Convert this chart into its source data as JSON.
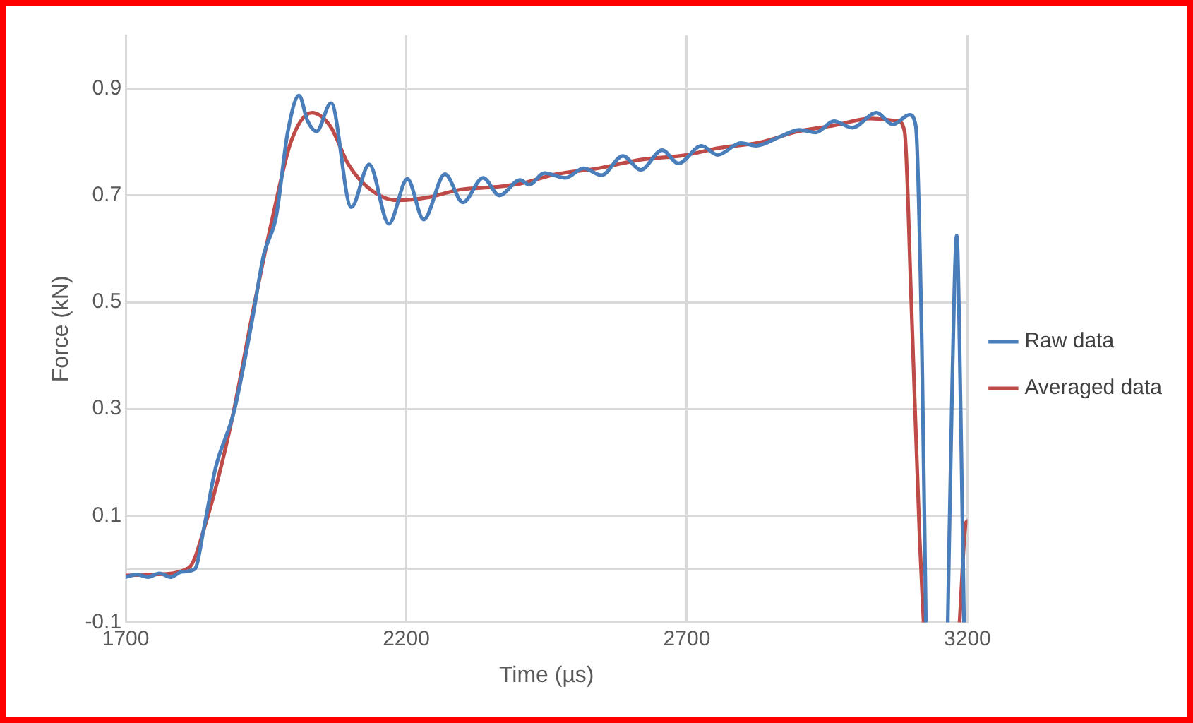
{
  "chart_data": {
    "type": "line",
    "xlabel": "Time (µs)",
    "ylabel": "Force (kN)",
    "xlim": [
      1700,
      3200
    ],
    "xticks": [
      1700,
      2200,
      2700,
      3200
    ],
    "ylim": [
      -0.1,
      1.0
    ],
    "yticks": [
      -0.1,
      {
        "value": 0,
        "label": null
      },
      0.1,
      0.3,
      0.5,
      0.7,
      0.9
    ],
    "grid": true,
    "legend": "right",
    "marker": "none",
    "line_style": "solid",
    "series": [
      {
        "name": "Raw data",
        "color": "#4a7ebb",
        "x": [
          1700,
          1720,
          1740,
          1760,
          1780,
          1800,
          1823,
          1840,
          1860,
          1893,
          1925,
          1946,
          1968,
          1989,
          2009,
          2024,
          2040,
          2066,
          2102,
          2134,
          2169,
          2202,
          2231,
          2269,
          2301,
          2337,
          2366,
          2403,
          2419,
          2446,
          2484,
          2516,
          2548,
          2586,
          2618,
          2656,
          2685,
          2726,
          2755,
          2796,
          2823,
          2866,
          2900,
          2930,
          2962,
          2995,
          3038,
          3067,
          3097,
          3108,
          3119,
          3126,
          3145,
          3165,
          3173,
          3181,
          3188,
          3194
        ],
        "values": [
          -0.015,
          -0.01,
          -0.015,
          -0.008,
          -0.015,
          -0.005,
          0.0,
          0.08,
          0.189,
          0.295,
          0.464,
          0.589,
          0.66,
          0.82,
          0.887,
          0.84,
          0.82,
          0.873,
          0.678,
          0.758,
          0.647,
          0.731,
          0.655,
          0.74,
          0.687,
          0.733,
          0.7,
          0.729,
          0.72,
          0.742,
          0.733,
          0.751,
          0.738,
          0.774,
          0.748,
          0.785,
          0.76,
          0.793,
          0.776,
          0.798,
          0.793,
          0.81,
          0.823,
          0.818,
          0.839,
          0.827,
          0.855,
          0.833,
          0.851,
          0.83,
          0.41,
          -0.1,
          null,
          -0.1,
          0.35,
          0.625,
          0.3,
          -0.1
        ]
      },
      {
        "name": "Averaged data",
        "color": "#be4b48",
        "x": [
          1700,
          1750,
          1812,
          1844,
          1887,
          1930,
          1962,
          1995,
          2032,
          2065,
          2097,
          2134,
          2183,
          2242,
          2296,
          2360,
          2403,
          2468,
          2543,
          2618,
          2694,
          2758,
          2833,
          2898,
          2962,
          3027,
          3075,
          3088,
          3100,
          3115,
          3122,
          3150,
          3186,
          3197,
          3200
        ],
        "values": [
          -0.012,
          -0.01,
          0.002,
          0.091,
          0.269,
          0.5,
          0.66,
          0.802,
          0.855,
          0.829,
          0.758,
          0.713,
          0.691,
          0.697,
          0.711,
          0.716,
          0.722,
          0.74,
          0.751,
          0.767,
          0.775,
          0.789,
          0.8,
          0.82,
          0.831,
          0.844,
          0.84,
          0.82,
          0.5,
          0.055,
          -0.1,
          null,
          -0.1,
          0.084,
          0.09
        ]
      }
    ]
  }
}
